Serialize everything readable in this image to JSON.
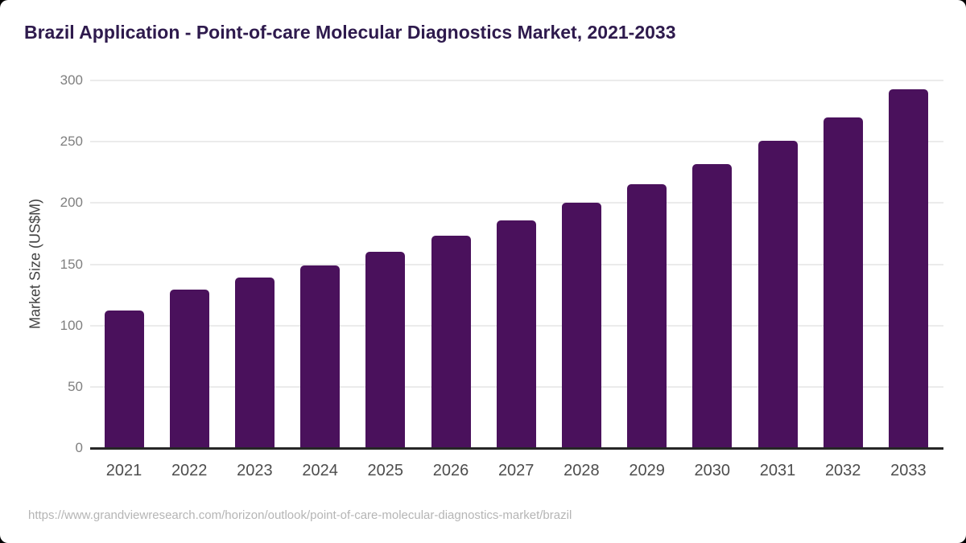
{
  "header": {
    "title": "Brazil Application - Point-of-care Molecular Diagnostics Market, 2021-2033"
  },
  "chart_data": {
    "type": "bar",
    "title": "Brazil Application - Point-of-care Molecular Diagnostics Market, 2021-2033",
    "categories": [
      "2021",
      "2022",
      "2023",
      "2024",
      "2025",
      "2026",
      "2027",
      "2028",
      "2029",
      "2030",
      "2031",
      "2032",
      "2033"
    ],
    "values": [
      112,
      129,
      139,
      149,
      160,
      173,
      186,
      200,
      215,
      232,
      251,
      270,
      293
    ],
    "xlabel": "",
    "ylabel": "Market Size (US$M)",
    "ylim": [
      0,
      300
    ],
    "yticks": [
      0,
      50,
      100,
      150,
      200,
      250,
      300
    ],
    "grid": "horizontal",
    "legend": "none",
    "bar_color": "#4a115c"
  },
  "colors": {
    "bar": "#4a115c",
    "title": "#2e1a4d",
    "axis_line": "#262626",
    "gridline": "#ebebeb",
    "y_tick_label": "#7f7f7f",
    "x_tick_label": "#4d4d4d",
    "y_axis_title": "#424242",
    "footer_text": "#b5b5b5",
    "card_background": "#ffffff",
    "frame_background": "#000000"
  },
  "footer": {
    "source_url": "https://www.grandviewresearch.com/horizon/outlook/point-of-care-molecular-diagnostics-market/brazil"
  }
}
